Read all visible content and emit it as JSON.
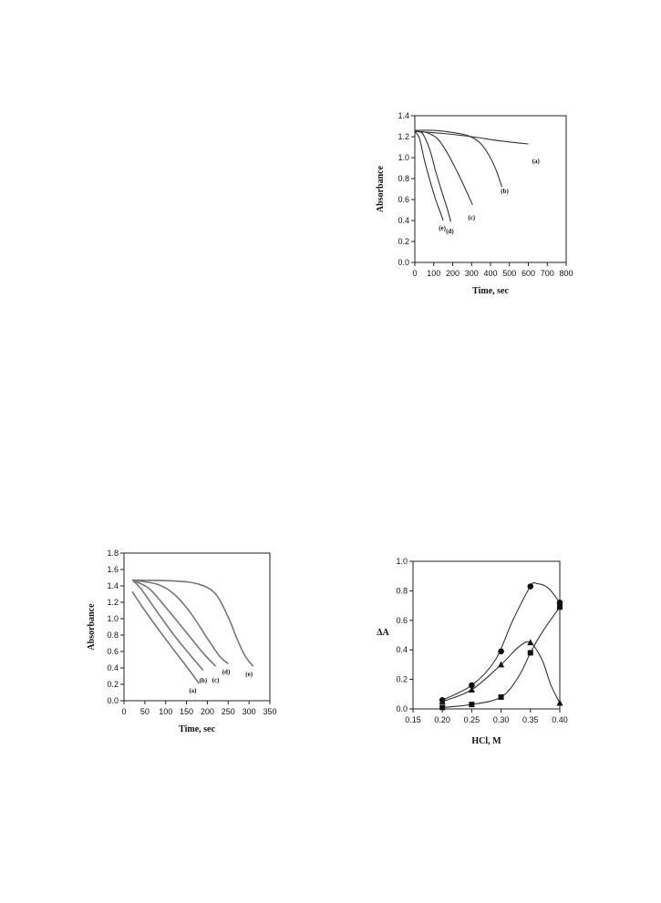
{
  "chart_data": [
    {
      "id": "c1",
      "type": "line",
      "xlabel": "Time, sec",
      "ylabel": "Absorbance",
      "xlim": [
        0,
        800
      ],
      "ylim": [
        0.0,
        1.4
      ],
      "xticks": [
        "0",
        "100",
        "200",
        "300",
        "400",
        "500",
        "600",
        "700",
        "800"
      ],
      "yticks": [
        "0.0",
        "0.2",
        "0.4",
        "0.6",
        "0.8",
        "1.0",
        "1.2",
        "1.4"
      ],
      "series": [
        {
          "name": "(a)",
          "points": [
            [
              0,
              1.25
            ],
            [
              150,
              1.23
            ],
            [
              300,
              1.2
            ],
            [
              450,
              1.16
            ],
            [
              600,
              1.13
            ]
          ],
          "label_at": [
            640,
            0.95
          ]
        },
        {
          "name": "(b)",
          "points": [
            [
              0,
              1.26
            ],
            [
              100,
              1.26
            ],
            [
              200,
              1.24
            ],
            [
              280,
              1.21
            ],
            [
              340,
              1.15
            ],
            [
              390,
              1.03
            ],
            [
              430,
              0.88
            ],
            [
              460,
              0.72
            ]
          ],
          "label_at": [
            475,
            0.66
          ]
        },
        {
          "name": "(c)",
          "points": [
            [
              0,
              1.25
            ],
            [
              60,
              1.24
            ],
            [
              120,
              1.18
            ],
            [
              170,
              1.05
            ],
            [
              220,
              0.88
            ],
            [
              260,
              0.73
            ],
            [
              305,
              0.55
            ]
          ],
          "label_at": [
            300,
            0.41
          ]
        },
        {
          "name": "(d)",
          "points": [
            [
              0,
              1.25
            ],
            [
              40,
              1.23
            ],
            [
              80,
              1.07
            ],
            [
              110,
              0.87
            ],
            [
              140,
              0.69
            ],
            [
              170,
              0.52
            ],
            [
              190,
              0.39
            ]
          ],
          "label_at": [
            185,
            0.28
          ]
        },
        {
          "name": "(e)",
          "points": [
            [
              0,
              1.25
            ],
            [
              25,
              1.18
            ],
            [
              50,
              0.98
            ],
            [
              80,
              0.78
            ],
            [
              110,
              0.6
            ],
            [
              130,
              0.5
            ],
            [
              150,
              0.4
            ]
          ],
          "label_at": [
            145,
            0.31
          ]
        }
      ]
    },
    {
      "id": "c2",
      "type": "line",
      "xlabel": "Time, sec",
      "ylabel": "Absorbance",
      "xlim": [
        0,
        350
      ],
      "ylim": [
        0.0,
        1.8
      ],
      "xticks": [
        "0",
        "50",
        "100",
        "150",
        "200",
        "250",
        "300",
        "350"
      ],
      "yticks": [
        "0.0",
        "0.2",
        "0.4",
        "0.6",
        "0.8",
        "1.0",
        "1.2",
        "1.4",
        "1.6",
        "1.8"
      ],
      "series": [
        {
          "name": "(a)",
          "points": [
            [
              20,
              1.33
            ],
            [
              50,
              1.1
            ],
            [
              90,
              0.82
            ],
            [
              130,
              0.55
            ],
            [
              160,
              0.35
            ],
            [
              180,
              0.21
            ]
          ],
          "label_at": [
            165,
            0.1
          ]
        },
        {
          "name": "(b)",
          "points": [
            [
              20,
              1.47
            ],
            [
              40,
              1.37
            ],
            [
              80,
              1.08
            ],
            [
              120,
              0.8
            ],
            [
              160,
              0.55
            ],
            [
              190,
              0.37
            ]
          ],
          "label_at": [
            190,
            0.22
          ]
        },
        {
          "name": "(c)",
          "points": [
            [
              20,
              1.47
            ],
            [
              60,
              1.37
            ],
            [
              100,
              1.14
            ],
            [
              150,
              0.83
            ],
            [
              190,
              0.58
            ],
            [
              220,
              0.42
            ]
          ],
          "label_at": [
            220,
            0.23
          ]
        },
        {
          "name": "(d)",
          "points": [
            [
              20,
              1.47
            ],
            [
              80,
              1.42
            ],
            [
              120,
              1.3
            ],
            [
              160,
              1.07
            ],
            [
              200,
              0.76
            ],
            [
              230,
              0.54
            ],
            [
              250,
              0.45
            ]
          ],
          "label_at": [
            245,
            0.33
          ]
        },
        {
          "name": "(e)",
          "points": [
            [
              20,
              1.47
            ],
            [
              120,
              1.46
            ],
            [
              180,
              1.42
            ],
            [
              220,
              1.3
            ],
            [
              250,
              1.02
            ],
            [
              270,
              0.77
            ],
            [
              290,
              0.55
            ],
            [
              310,
              0.42
            ]
          ],
          "label_at": [
            300,
            0.3
          ]
        }
      ]
    },
    {
      "id": "c3",
      "type": "scatter",
      "xlabel": "HCl, M",
      "ylabel": "ΔA",
      "xlim": [
        0.15,
        0.4
      ],
      "ylim": [
        0.0,
        1.0
      ],
      "xticks": [
        "0.15",
        "0.20",
        "0.25",
        "0.30",
        "0.35",
        "0.40"
      ],
      "yticks": [
        "0.0",
        "0.2",
        "0.4",
        "0.6",
        "0.8",
        "1.0"
      ],
      "series": [
        {
          "marker": "circle",
          "points": [
            [
              0.2,
              0.06
            ],
            [
              0.25,
              0.16
            ],
            [
              0.3,
              0.39
            ],
            [
              0.35,
              0.83
            ],
            [
              0.4,
              0.72
            ]
          ],
          "curve": [
            [
              0.2,
              0.06
            ],
            [
              0.25,
              0.16
            ],
            [
              0.29,
              0.33
            ],
            [
              0.32,
              0.6
            ],
            [
              0.35,
              0.83
            ],
            [
              0.36,
              0.85
            ],
            [
              0.38,
              0.82
            ],
            [
              0.4,
              0.72
            ]
          ]
        },
        {
          "marker": "triangle",
          "points": [
            [
              0.2,
              0.05
            ],
            [
              0.25,
              0.13
            ],
            [
              0.3,
              0.3
            ],
            [
              0.35,
              0.45
            ],
            [
              0.4,
              0.04
            ]
          ],
          "curve": [
            [
              0.2,
              0.05
            ],
            [
              0.25,
              0.13
            ],
            [
              0.3,
              0.3
            ],
            [
              0.33,
              0.42
            ],
            [
              0.35,
              0.45
            ],
            [
              0.37,
              0.33
            ],
            [
              0.385,
              0.16
            ],
            [
              0.4,
              0.04
            ]
          ]
        },
        {
          "marker": "square",
          "points": [
            [
              0.2,
              0.01
            ],
            [
              0.25,
              0.03
            ],
            [
              0.3,
              0.08
            ],
            [
              0.35,
              0.38
            ],
            [
              0.4,
              0.69
            ]
          ],
          "curve": [
            [
              0.2,
              0.01
            ],
            [
              0.25,
              0.03
            ],
            [
              0.3,
              0.08
            ],
            [
              0.33,
              0.22
            ],
            [
              0.35,
              0.38
            ],
            [
              0.37,
              0.52
            ],
            [
              0.4,
              0.69
            ]
          ]
        }
      ]
    }
  ]
}
